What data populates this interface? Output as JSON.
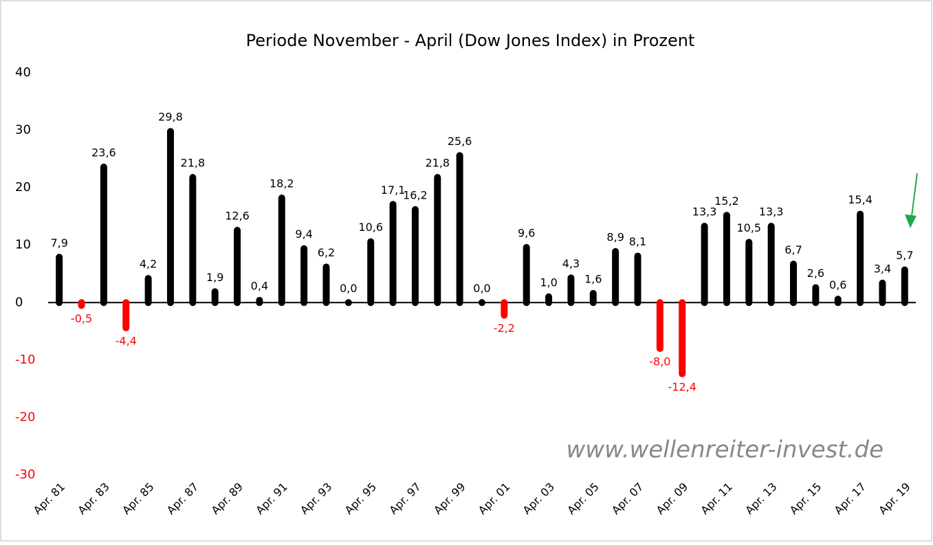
{
  "chart_data": {
    "type": "bar",
    "title": "Periode November - April (Dow Jones Index) in Prozent",
    "annotation": "www.wellenreiter-invest.de",
    "categories": [
      "Apr. 81",
      null,
      "Apr. 83",
      null,
      "Apr. 85",
      null,
      "Apr. 87",
      null,
      "Apr. 89",
      null,
      "Apr. 91",
      null,
      "Apr. 93",
      null,
      "Apr. 95",
      null,
      "Apr. 97",
      null,
      "Apr. 99",
      null,
      "Apr. 01",
      null,
      "Apr. 03",
      null,
      "Apr. 05",
      null,
      "Apr. 07",
      null,
      "Apr. 09",
      null,
      "Apr. 11",
      null,
      "Apr. 13",
      null,
      "Apr. 15",
      null,
      "Apr. 17",
      null,
      "Apr. 19"
    ],
    "values": [
      7.9,
      -0.5,
      23.6,
      -4.4,
      4.2,
      29.8,
      21.8,
      1.9,
      12.6,
      0.4,
      18.2,
      9.4,
      6.2,
      0.0,
      10.6,
      17.1,
      16.2,
      21.8,
      25.6,
      0.0,
      -2.2,
      9.6,
      1.0,
      4.3,
      1.6,
      8.9,
      8.1,
      -8.0,
      -12.4,
      13.3,
      15.2,
      10.5,
      13.3,
      6.7,
      2.6,
      0.6,
      15.4,
      3.4,
      5.7
    ],
    "value_labels": [
      "7,9",
      "-0,5",
      "23,6",
      "-4,4",
      "4,2",
      "29,8",
      "21,8",
      "1,9",
      "12,6",
      "0,4",
      "18,2",
      "9,4",
      "6,2",
      "0,0",
      "10,6",
      "17,1",
      "16,2",
      "21,8",
      "25,6",
      "0,0",
      "-2,2",
      "9,6",
      "1,0",
      "4,3",
      "1,6",
      "8,9",
      "8,1",
      "-8,0",
      "-12,4",
      "13,3",
      "15,2",
      "10,5",
      "13,3",
      "6,7",
      "2,6",
      "0,6",
      "15,4",
      "3,4",
      "5,7"
    ],
    "color": "#000000",
    "negative_color": "#ff0000",
    "ylim": [
      -30,
      40
    ],
    "yticks": [
      -30,
      -20,
      -10,
      0,
      10,
      20,
      30,
      40
    ],
    "grid": false
  }
}
